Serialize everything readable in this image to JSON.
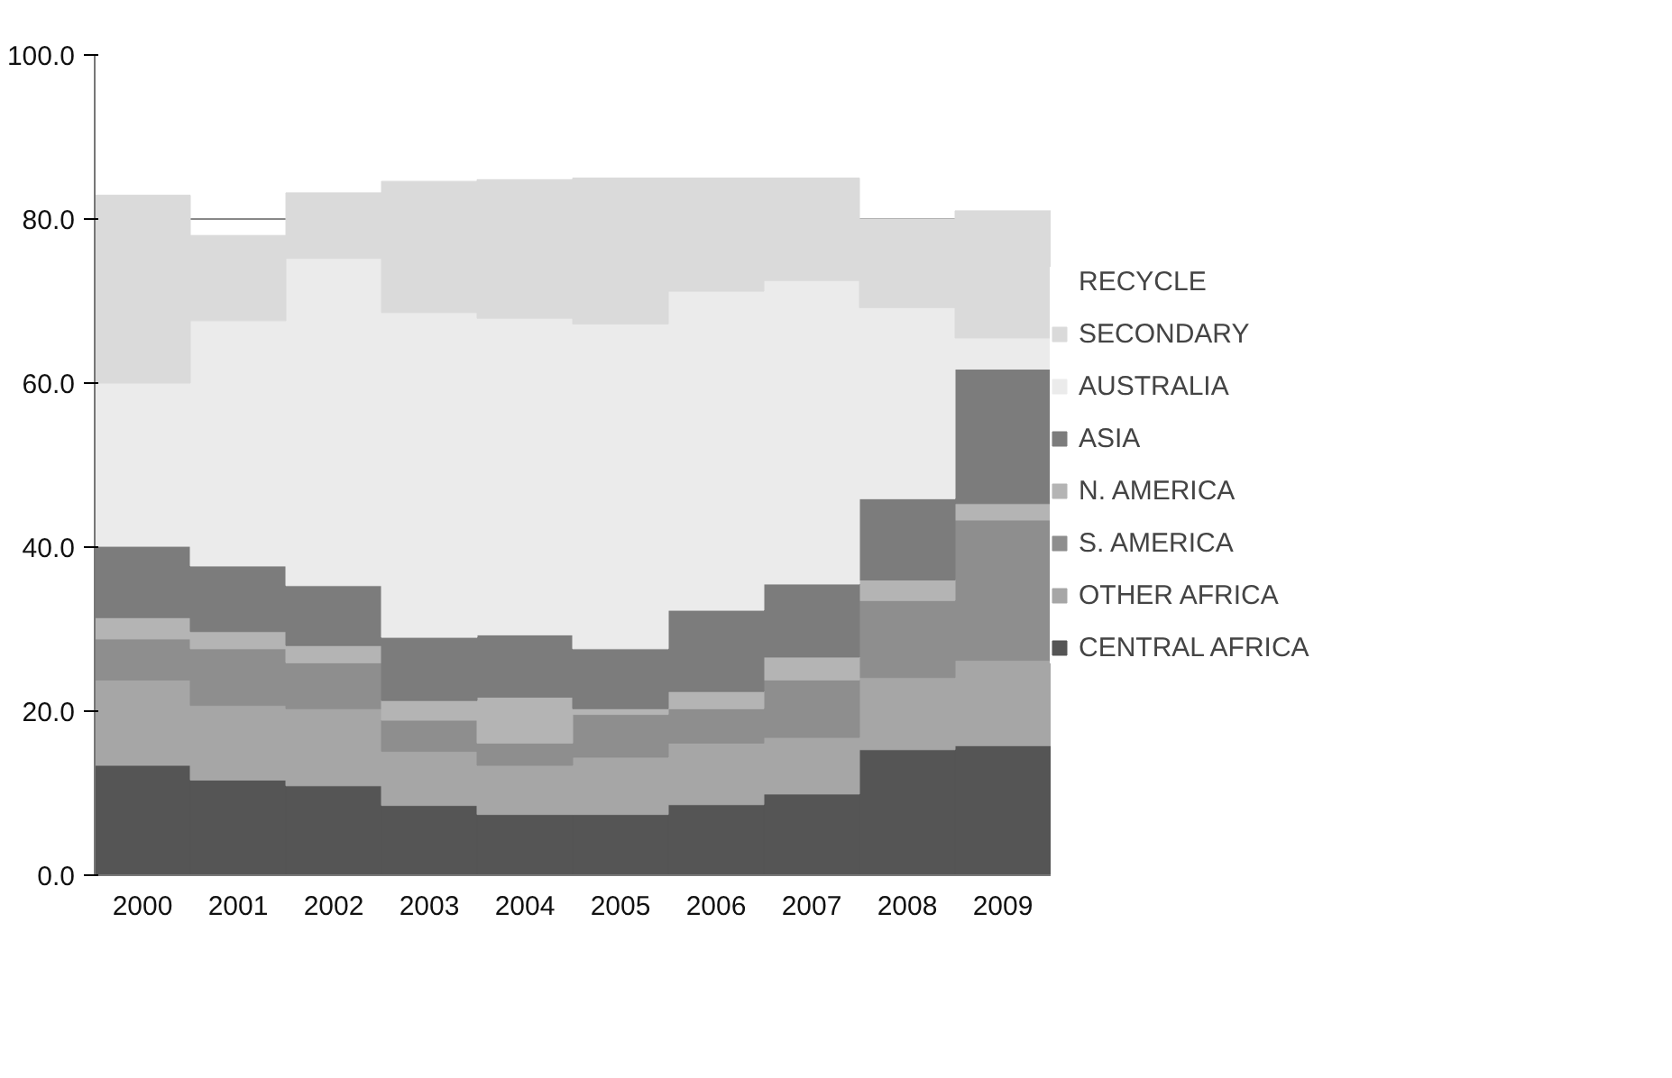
{
  "chart_data": {
    "type": "bar",
    "stacked": true,
    "categories": [
      "2000",
      "2001",
      "2002",
      "2003",
      "2004",
      "2005",
      "2006",
      "2007",
      "2008",
      "2009"
    ],
    "series": [
      {
        "name": "CENTRAL AFRICA",
        "color": "#555555",
        "values": [
          13.4,
          11.6,
          10.9,
          8.5,
          7.4,
          7.4,
          8.6,
          9.9,
          15.3,
          15.8
        ]
      },
      {
        "name": "OTHER AFRICA",
        "color": "#a6a6a6",
        "values": [
          10.4,
          9.1,
          9.4,
          6.6,
          6.0,
          7.0,
          7.5,
          6.9,
          8.8,
          10.4
        ]
      },
      {
        "name": "S. AMERICA",
        "color": "#8e8e8e",
        "values": [
          5.0,
          6.9,
          5.6,
          3.8,
          2.7,
          5.2,
          4.2,
          7.0,
          9.4,
          17.1
        ]
      },
      {
        "name": "N. AMERICA",
        "color": "#b4b4b4",
        "values": [
          2.6,
          2.1,
          2.1,
          2.4,
          5.6,
          0.7,
          2.1,
          2.8,
          2.5,
          2.0
        ]
      },
      {
        "name": "ASIA",
        "color": "#7c7c7c",
        "values": [
          8.7,
          8.0,
          7.3,
          7.7,
          7.6,
          7.3,
          9.9,
          8.9,
          9.9,
          16.4
        ]
      },
      {
        "name": "AUSTRALIA",
        "color": "#ebebeb",
        "values": [
          19.9,
          29.9,
          39.9,
          39.6,
          38.6,
          39.6,
          38.9,
          37.0,
          23.3,
          3.8
        ]
      },
      {
        "name": "SECONDARY",
        "color": "#dadada",
        "values": [
          22.9,
          10.4,
          8.0,
          16.0,
          16.9,
          17.8,
          13.8,
          12.5,
          10.8,
          15.5
        ]
      },
      {
        "name": "RECYCLE",
        "values": [
          null,
          null,
          null,
          null,
          null,
          null,
          null,
          null,
          null,
          null
        ]
      }
    ],
    "ylim": [
      0,
      100
    ],
    "yticks": [
      {
        "value": 0,
        "label": "0.0"
      },
      {
        "value": 20,
        "label": "20.0"
      },
      {
        "value": 40,
        "label": "40.0"
      },
      {
        "value": 60,
        "label": "60.0"
      },
      {
        "value": 80,
        "label": "80.0"
      },
      {
        "value": 100,
        "label": "100.0"
      }
    ],
    "grid": "y",
    "legend": "right"
  }
}
